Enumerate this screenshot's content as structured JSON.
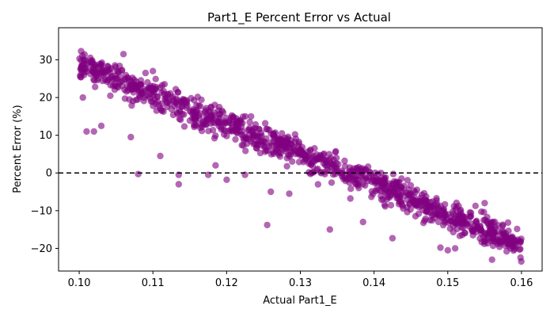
{
  "chart_data": {
    "type": "scatter",
    "title": "Part1_E Percent Error vs Actual",
    "xlabel": "Actual Part1_E",
    "ylabel": "Percent Error (%)",
    "xlim": [
      0.0972,
      0.1628
    ],
    "ylim": [
      -26,
      38.5
    ],
    "x_ticks": [
      0.1,
      0.11,
      0.12,
      0.13,
      0.14,
      0.15,
      0.16
    ],
    "x_tick_labels": [
      "0.10",
      "0.11",
      "0.12",
      "0.13",
      "0.14",
      "0.15",
      "0.16"
    ],
    "y_ticks": [
      -20,
      -10,
      0,
      10,
      20,
      30
    ],
    "y_tick_labels": [
      "−20",
      "−10",
      "0",
      "10",
      "20",
      "30"
    ],
    "reference_line": {
      "y": 0,
      "style": "dashed",
      "color": "#000000"
    },
    "grid": false,
    "legend": "none",
    "marker_color": "#800080",
    "marker_opacity": 0.6,
    "trend": {
      "x_start": 0.1,
      "y_start": 29,
      "x_end": 0.16,
      "y_end": -19,
      "spread": 4.5,
      "n_points": 1100
    },
    "outliers": [
      {
        "x": 0.1005,
        "y": 20
      },
      {
        "x": 0.101,
        "y": 11
      },
      {
        "x": 0.102,
        "y": 11
      },
      {
        "x": 0.103,
        "y": 12.5
      },
      {
        "x": 0.106,
        "y": 31.5
      },
      {
        "x": 0.107,
        "y": 9.5
      },
      {
        "x": 0.108,
        "y": -0.3
      },
      {
        "x": 0.109,
        "y": 26.5
      },
      {
        "x": 0.11,
        "y": 27
      },
      {
        "x": 0.111,
        "y": 4.5
      },
      {
        "x": 0.1135,
        "y": -0.5
      },
      {
        "x": 0.1135,
        "y": -3
      },
      {
        "x": 0.1175,
        "y": -0.5
      },
      {
        "x": 0.1185,
        "y": 2
      },
      {
        "x": 0.12,
        "y": -1.8
      },
      {
        "x": 0.1225,
        "y": -0.5
      },
      {
        "x": 0.1255,
        "y": -13.8
      },
      {
        "x": 0.126,
        "y": -5
      },
      {
        "x": 0.1275,
        "y": 10.5
      },
      {
        "x": 0.1285,
        "y": -5.5
      },
      {
        "x": 0.134,
        "y": -15
      },
      {
        "x": 0.1345,
        "y": 2
      },
      {
        "x": 0.136,
        "y": 3.2
      },
      {
        "x": 0.1385,
        "y": -13
      },
      {
        "x": 0.1425,
        "y": -17.3
      },
      {
        "x": 0.149,
        "y": -19.8
      },
      {
        "x": 0.15,
        "y": -20.5
      },
      {
        "x": 0.151,
        "y": -20
      },
      {
        "x": 0.153,
        "y": -10.5
      },
      {
        "x": 0.155,
        "y": -8
      },
      {
        "x": 0.156,
        "y": -23
      }
    ]
  }
}
